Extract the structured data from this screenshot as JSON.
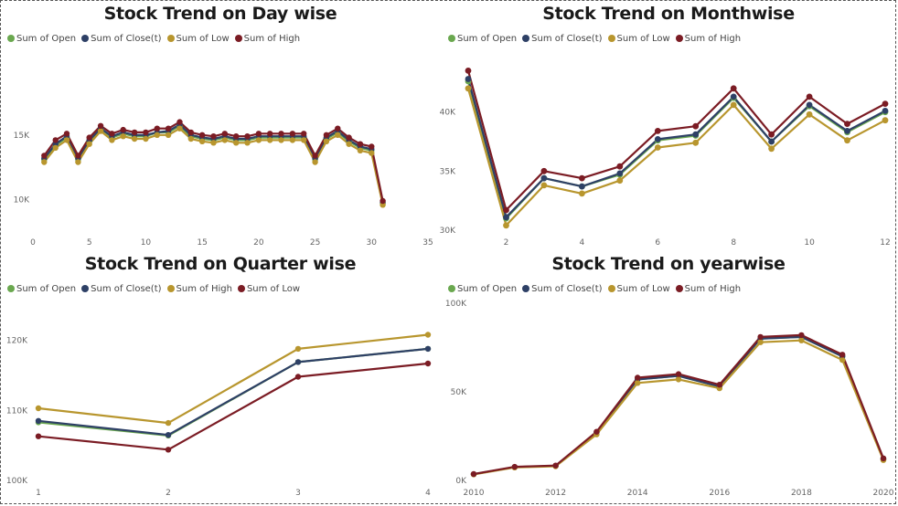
{
  "chart_data": [
    {
      "type": "line",
      "title": "Stock Trend on Day wise",
      "xlabel": "",
      "ylabel": "",
      "xlim": [
        0,
        35
      ],
      "ylim": [
        7500,
        19500
      ],
      "x_ticks": [
        0,
        5,
        10,
        15,
        20,
        25,
        30,
        35
      ],
      "x_tick_labels": [
        "0",
        "5",
        "10",
        "15",
        "20",
        "25",
        "30",
        "35"
      ],
      "y_ticks": [
        10000,
        15000
      ],
      "y_tick_labels": [
        "10K",
        "15K"
      ],
      "legend_position": "top-left",
      "x": [
        1,
        2,
        3,
        4,
        5,
        6,
        7,
        8,
        9,
        10,
        11,
        12,
        13,
        14,
        15,
        16,
        17,
        18,
        19,
        20,
        21,
        22,
        23,
        24,
        25,
        26,
        27,
        28,
        29,
        30,
        31
      ],
      "series": [
        {
          "name": "Sum of Open",
          "color": "#6aa84f",
          "values": [
            13100,
            14200,
            14800,
            13100,
            14500,
            15500,
            14800,
            15100,
            14900,
            14900,
            15200,
            15200,
            15700,
            14900,
            14700,
            14600,
            14800,
            14600,
            14600,
            14800,
            14800,
            14800,
            14800,
            14800,
            13100,
            14700,
            15200,
            14500,
            14000,
            13800,
            9700
          ]
        },
        {
          "name": "Sum of Close(t)",
          "color": "#2e4066",
          "values": [
            13200,
            14300,
            14900,
            13200,
            14600,
            15500,
            14900,
            15200,
            15000,
            15000,
            15200,
            15300,
            15800,
            15000,
            14800,
            14700,
            14900,
            14700,
            14700,
            14900,
            14900,
            14900,
            14900,
            14900,
            13200,
            14800,
            15300,
            14600,
            14100,
            13900,
            9800
          ]
        },
        {
          "name": "Sum of Low",
          "color": "#b8962e",
          "values": [
            12900,
            14000,
            14600,
            12900,
            14300,
            15300,
            14600,
            14900,
            14700,
            14700,
            15000,
            15000,
            15500,
            14700,
            14500,
            14400,
            14600,
            14400,
            14400,
            14600,
            14600,
            14600,
            14600,
            14600,
            12900,
            14500,
            15000,
            14300,
            13800,
            13600,
            9600
          ]
        },
        {
          "name": "Sum of High",
          "color": "#7b1c24",
          "values": [
            13400,
            14600,
            15100,
            13400,
            14800,
            15700,
            15100,
            15400,
            15200,
            15200,
            15500,
            15500,
            16000,
            15200,
            15000,
            14900,
            15100,
            14900,
            14900,
            15100,
            15100,
            15100,
            15100,
            15100,
            13400,
            15000,
            15500,
            14800,
            14300,
            14100,
            9900
          ]
        }
      ]
    },
    {
      "type": "line",
      "title": "Stock Trend on Monthwise",
      "xlabel": "",
      "ylabel": "",
      "xlim": [
        1,
        12
      ],
      "ylim": [
        30000,
        45000
      ],
      "x_ticks": [
        2,
        4,
        6,
        8,
        10,
        12
      ],
      "x_tick_labels": [
        "2",
        "4",
        "6",
        "8",
        "10",
        "12"
      ],
      "y_ticks": [
        30000,
        35000,
        40000
      ],
      "y_tick_labels": [
        "30K",
        "35K",
        "40K"
      ],
      "legend_position": "top-left",
      "x": [
        1,
        2,
        3,
        4,
        5,
        6,
        7,
        8,
        9,
        10,
        11,
        12
      ],
      "series": [
        {
          "name": "Sum of Open",
          "color": "#6aa84f",
          "values": [
            42600,
            31000,
            34400,
            33700,
            34700,
            37600,
            38000,
            41200,
            37500,
            40500,
            38300,
            40000
          ]
        },
        {
          "name": "Sum of Close(t)",
          "color": "#2e4066",
          "values": [
            42800,
            31100,
            34400,
            33700,
            34800,
            37700,
            38100,
            41300,
            37500,
            40600,
            38400,
            40100
          ]
        },
        {
          "name": "Sum of Low",
          "color": "#b8962e",
          "values": [
            42000,
            30400,
            33800,
            33100,
            34200,
            37000,
            37400,
            40600,
            36900,
            39800,
            37600,
            39300
          ]
        },
        {
          "name": "Sum of High",
          "color": "#7b1c24",
          "values": [
            43500,
            31700,
            35000,
            34400,
            35400,
            38400,
            38800,
            42000,
            38100,
            41300,
            39000,
            40700
          ]
        }
      ]
    },
    {
      "type": "line",
      "title": "Stock Trend on Quarter wise",
      "xlabel": "",
      "ylabel": "",
      "xlim": [
        1,
        4
      ],
      "ylim": [
        100000,
        124000
      ],
      "x_ticks": [
        1,
        2,
        3,
        4
      ],
      "x_tick_labels": [
        "1",
        "2",
        "3",
        "4"
      ],
      "y_ticks": [
        100000,
        110000,
        120000
      ],
      "y_tick_labels": [
        "100K",
        "110K",
        "120K"
      ],
      "legend_position": "top-left",
      "x": [
        1,
        2,
        3,
        4
      ],
      "series": [
        {
          "name": "Sum of Open",
          "color": "#6aa84f",
          "values": [
            108300,
            106400,
            116900,
            118800
          ]
        },
        {
          "name": "Sum of Close(t)",
          "color": "#2e4066",
          "values": [
            108500,
            106500,
            116900,
            118800
          ]
        },
        {
          "name": "Sum of High",
          "color": "#b8962e",
          "values": [
            110300,
            108200,
            118800,
            120800
          ]
        },
        {
          "name": "Sum of Low",
          "color": "#7b1c24",
          "values": [
            106300,
            104400,
            114800,
            116700
          ]
        }
      ]
    },
    {
      "type": "line",
      "title": "Stock Trend on yearwise",
      "xlabel": "",
      "ylabel": "",
      "xlim": [
        2010,
        2020
      ],
      "ylim": [
        0,
        100000
      ],
      "x_ticks": [
        2010,
        2012,
        2014,
        2016,
        2018,
        2020
      ],
      "x_tick_labels": [
        "2010",
        "2012",
        "2014",
        "2016",
        "2018",
        "2020"
      ],
      "y_ticks": [
        0,
        50000,
        100000
      ],
      "y_tick_labels": [
        "0K",
        "50K",
        "100K"
      ],
      "legend_position": "top-left",
      "x": [
        2010,
        2011,
        2012,
        2013,
        2014,
        2015,
        2016,
        2017,
        2018,
        2019,
        2020
      ],
      "series": [
        {
          "name": "Sum of Open",
          "color": "#6aa84f",
          "values": [
            3500,
            7500,
            8200,
            27000,
            57000,
            59000,
            53000,
            80000,
            81000,
            70000,
            12000
          ]
        },
        {
          "name": "Sum of Close(t)",
          "color": "#2e4066",
          "values": [
            3500,
            7500,
            8200,
            27000,
            57000,
            59000,
            53000,
            80000,
            81000,
            70000,
            12000
          ]
        },
        {
          "name": "Sum of Low",
          "color": "#b8962e",
          "values": [
            3400,
            7300,
            8000,
            26000,
            55000,
            57000,
            52000,
            78000,
            79000,
            68000,
            11500
          ]
        },
        {
          "name": "Sum of High",
          "color": "#7b1c24",
          "values": [
            3600,
            7700,
            8400,
            27500,
            58000,
            60000,
            54000,
            81000,
            82000,
            71000,
            12500
          ]
        }
      ]
    }
  ]
}
